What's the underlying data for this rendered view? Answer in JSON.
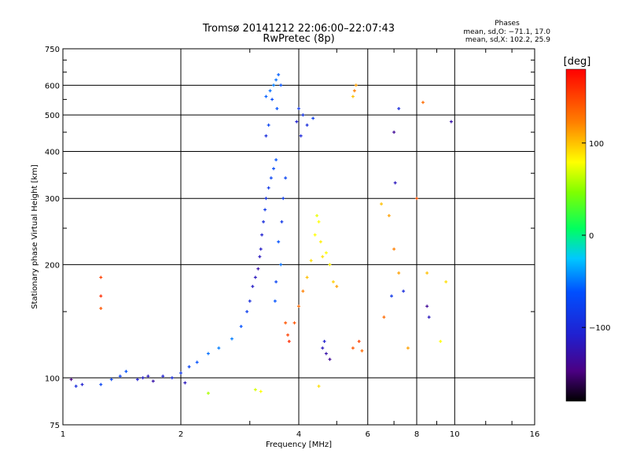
{
  "chart_data": {
    "type": "scatter",
    "title": "Tromsø 20141212 22:06:00–22:07:43",
    "subtitle": "RwPretec (8p)",
    "xlabel": "Frequency [MHz]",
    "ylabel": "Stationary phase Virtual Height [km]",
    "x_scale": "log",
    "y_scale": "log",
    "xlim": [
      1,
      16
    ],
    "ylim": [
      75,
      750
    ],
    "x_ticks": [
      1,
      2,
      4,
      8,
      16
    ],
    "x_tick_labels": [
      "1",
      "2",
      "4",
      "8",
      "16"
    ],
    "x_minor_labeled_ticks": [
      6,
      10
    ],
    "x_minor_tick_labels": [
      "6",
      "10"
    ],
    "x_grid": [
      2,
      4,
      6,
      8,
      10
    ],
    "y_ticks": [
      75,
      100,
      200,
      300,
      400,
      500,
      600,
      750
    ],
    "y_tick_labels": [
      "75",
      "100",
      "200",
      "300",
      "400",
      "500",
      "600",
      "750"
    ],
    "y_grid": [
      100,
      200,
      300,
      400,
      500,
      600
    ],
    "grid": true,
    "phases_box": {
      "title": "Phases",
      "line_o": "mean, sd,O: −71.1, 17.0",
      "line_x": "mean, sd,X: 102.2, 25.9"
    },
    "colorbar": {
      "label": "[deg]",
      "range": [
        -180,
        180
      ],
      "ticks": [
        100,
        0,
        -100
      ],
      "tick_labels": [
        "100",
        "0",
        "−100"
      ],
      "colormap": "rainbow (black-purple-blue-cyan-green-yellow-orange-red)"
    },
    "series": [
      {
        "mode": "O",
        "points": [
          [
            1.05,
            99,
            -150
          ],
          [
            1.08,
            95,
            -100
          ],
          [
            1.12,
            96,
            -110
          ],
          [
            1.25,
            96,
            -80
          ],
          [
            1.33,
            99,
            -80
          ],
          [
            1.4,
            101,
            -85
          ],
          [
            1.45,
            104,
            -70
          ],
          [
            1.55,
            99,
            -110
          ],
          [
            1.6,
            100,
            -115
          ],
          [
            1.65,
            101,
            -120
          ],
          [
            1.7,
            98,
            -130
          ],
          [
            1.8,
            101,
            -110
          ],
          [
            1.9,
            100,
            -100
          ],
          [
            2.0,
            103,
            -90
          ],
          [
            2.05,
            97,
            -120
          ],
          [
            2.1,
            107,
            -80
          ],
          [
            2.2,
            110,
            -70
          ],
          [
            2.35,
            116,
            -60
          ],
          [
            2.5,
            120,
            -55
          ],
          [
            2.7,
            127,
            -55
          ],
          [
            2.85,
            137,
            -70
          ],
          [
            2.95,
            150,
            -85
          ],
          [
            3.0,
            160,
            -100
          ],
          [
            3.05,
            175,
            -115
          ],
          [
            3.1,
            185,
            -120
          ],
          [
            3.15,
            195,
            -130
          ],
          [
            3.18,
            210,
            -120
          ],
          [
            3.2,
            220,
            -115
          ],
          [
            3.22,
            240,
            -110
          ],
          [
            3.25,
            260,
            -100
          ],
          [
            3.28,
            280,
            -90
          ],
          [
            3.3,
            300,
            -95
          ],
          [
            3.35,
            320,
            -90
          ],
          [
            3.4,
            340,
            -80
          ],
          [
            3.45,
            360,
            -75
          ],
          [
            3.5,
            380,
            -70
          ],
          [
            3.3,
            440,
            -100
          ],
          [
            3.35,
            470,
            -80
          ],
          [
            3.3,
            560,
            -65
          ],
          [
            3.38,
            580,
            -60
          ],
          [
            3.45,
            600,
            -55
          ],
          [
            3.5,
            620,
            -60
          ],
          [
            3.55,
            640,
            -65
          ],
          [
            3.6,
            600,
            -70
          ],
          [
            3.42,
            550,
            -75
          ],
          [
            3.52,
            520,
            -70
          ],
          [
            3.6,
            200,
            -60
          ],
          [
            3.55,
            230,
            -70
          ],
          [
            3.5,
            180,
            -80
          ],
          [
            3.48,
            160,
            -70
          ],
          [
            3.62,
            260,
            -90
          ],
          [
            3.65,
            300,
            -85
          ],
          [
            3.7,
            340,
            -80
          ],
          [
            3.95,
            480,
            -110
          ],
          [
            4.1,
            500,
            -95
          ],
          [
            4.2,
            470,
            -100
          ],
          [
            4.05,
            440,
            -105
          ],
          [
            4.0,
            520,
            -90
          ],
          [
            4.35,
            490,
            -85
          ],
          [
            4.6,
            120,
            -120
          ],
          [
            4.7,
            116,
            -130
          ],
          [
            4.8,
            112,
            -140
          ],
          [
            4.65,
            125,
            -110
          ],
          [
            7.0,
            450,
            -140
          ],
          [
            7.05,
            330,
            -120
          ],
          [
            7.2,
            520,
            -100
          ],
          [
            8.6,
            145,
            -120
          ],
          [
            8.5,
            155,
            -140
          ],
          [
            9.8,
            480,
            -130
          ],
          [
            6.9,
            165,
            -90
          ],
          [
            7.4,
            170,
            -100
          ]
        ]
      },
      {
        "mode": "X",
        "points": [
          [
            3.7,
            140,
            140
          ],
          [
            3.75,
            130,
            150
          ],
          [
            3.78,
            125,
            160
          ],
          [
            3.9,
            140,
            140
          ],
          [
            4.0,
            155,
            130
          ],
          [
            4.1,
            170,
            120
          ],
          [
            4.2,
            185,
            100
          ],
          [
            4.3,
            205,
            90
          ],
          [
            4.4,
            240,
            80
          ],
          [
            4.45,
            270,
            75
          ],
          [
            4.5,
            260,
            80
          ],
          [
            4.55,
            230,
            85
          ],
          [
            4.6,
            210,
            90
          ],
          [
            4.7,
            215,
            80
          ],
          [
            4.8,
            200,
            85
          ],
          [
            4.9,
            180,
            95
          ],
          [
            5.0,
            175,
            110
          ],
          [
            5.5,
            560,
            100
          ],
          [
            5.6,
            600,
            110
          ],
          [
            5.55,
            580,
            120
          ],
          [
            5.5,
            120,
            140
          ],
          [
            5.7,
            125,
            150
          ],
          [
            5.8,
            118,
            130
          ],
          [
            4.5,
            95,
            90
          ],
          [
            3.1,
            93,
            70
          ],
          [
            3.2,
            92,
            80
          ],
          [
            2.35,
            91,
            60
          ],
          [
            1.25,
            185,
            150
          ],
          [
            1.25,
            165,
            160
          ],
          [
            1.25,
            153,
            140
          ],
          [
            6.5,
            290,
            100
          ],
          [
            6.8,
            270,
            110
          ],
          [
            7.2,
            190,
            110
          ],
          [
            8.0,
            300,
            140
          ],
          [
            8.5,
            190,
            100
          ],
          [
            9.5,
            180,
            90
          ],
          [
            9.2,
            125,
            80
          ],
          [
            8.3,
            540,
            130
          ],
          [
            7.0,
            220,
            120
          ],
          [
            6.6,
            145,
            130
          ],
          [
            7.6,
            120,
            110
          ]
        ]
      }
    ]
  }
}
